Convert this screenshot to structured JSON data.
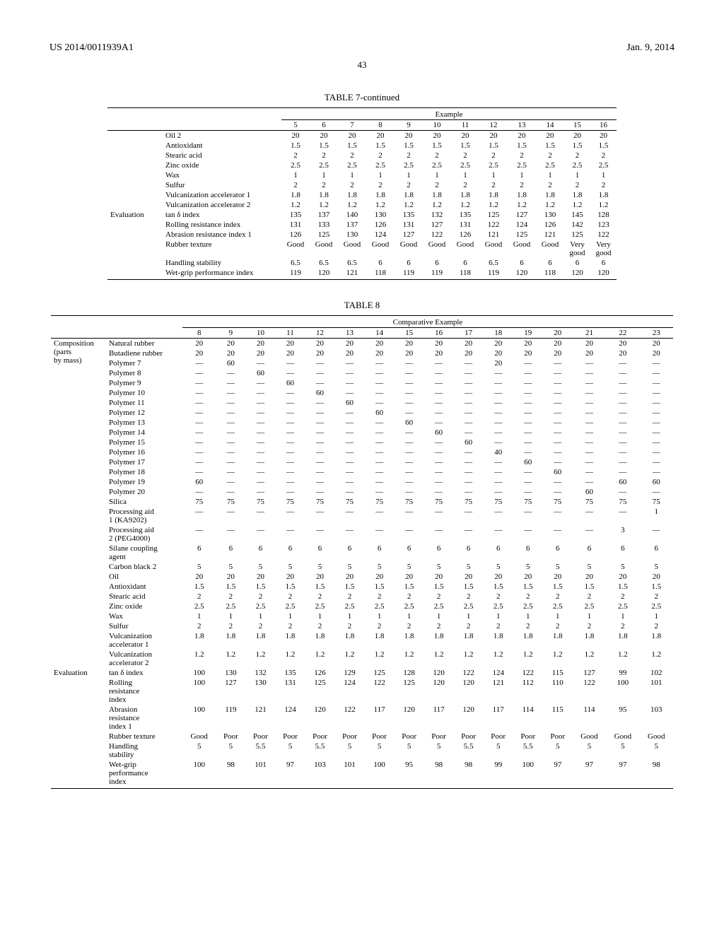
{
  "header": {
    "left": "US 2014/0011939A1",
    "right": "Jan. 9, 2014",
    "page": "43"
  },
  "table7": {
    "title": "TABLE 7-continued",
    "group_header": "Example",
    "col_labels": [
      "5",
      "6",
      "7",
      "8",
      "9",
      "10",
      "11",
      "12",
      "13",
      "14",
      "15",
      "16"
    ],
    "categories": [
      "",
      "Evaluation"
    ],
    "cat_start_row": 8,
    "rows": [
      {
        "label": "Oil 2",
        "v": [
          "20",
          "20",
          "20",
          "20",
          "20",
          "20",
          "20",
          "20",
          "20",
          "20",
          "20",
          "20"
        ]
      },
      {
        "label": "Antioxidant",
        "v": [
          "1.5",
          "1.5",
          "1.5",
          "1.5",
          "1.5",
          "1.5",
          "1.5",
          "1.5",
          "1.5",
          "1.5",
          "1.5",
          "1.5"
        ]
      },
      {
        "label": "Stearic acid",
        "v": [
          "2",
          "2",
          "2",
          "2",
          "2",
          "2",
          "2",
          "2",
          "2",
          "2",
          "2",
          "2"
        ]
      },
      {
        "label": "Zinc oxide",
        "v": [
          "2.5",
          "2.5",
          "2.5",
          "2.5",
          "2.5",
          "2.5",
          "2.5",
          "2.5",
          "2.5",
          "2.5",
          "2.5",
          "2.5"
        ]
      },
      {
        "label": "Wax",
        "v": [
          "1",
          "1",
          "1",
          "1",
          "1",
          "1",
          "1",
          "1",
          "1",
          "1",
          "1",
          "1"
        ]
      },
      {
        "label": "Sulfur",
        "v": [
          "2",
          "2",
          "2",
          "2",
          "2",
          "2",
          "2",
          "2",
          "2",
          "2",
          "2",
          "2"
        ]
      },
      {
        "label": "Vulcanization accelerator 1",
        "v": [
          "1.8",
          "1.8",
          "1.8",
          "1.8",
          "1.8",
          "1.8",
          "1.8",
          "1.8",
          "1.8",
          "1.8",
          "1.8",
          "1.8"
        ]
      },
      {
        "label": "Vulcanization accelerator 2",
        "v": [
          "1.2",
          "1.2",
          "1.2",
          "1.2",
          "1.2",
          "1.2",
          "1.2",
          "1.2",
          "1.2",
          "1.2",
          "1.2",
          "1.2"
        ]
      },
      {
        "label": "tan δ index",
        "v": [
          "135",
          "137",
          "140",
          "130",
          "135",
          "132",
          "135",
          "125",
          "127",
          "130",
          "145",
          "128"
        ]
      },
      {
        "label": "Rolling resistance index",
        "v": [
          "131",
          "133",
          "137",
          "126",
          "131",
          "127",
          "131",
          "122",
          "124",
          "126",
          "142",
          "123"
        ]
      },
      {
        "label": "Abrasion resistance index 1",
        "v": [
          "126",
          "125",
          "130",
          "124",
          "127",
          "122",
          "126",
          "121",
          "125",
          "121",
          "125",
          "122"
        ]
      },
      {
        "label": "Rubber texture",
        "v": [
          "Good",
          "Good",
          "Good",
          "Good",
          "Good",
          "Good",
          "Good",
          "Good",
          "Good",
          "Good",
          "Very good",
          "Very good"
        ]
      },
      {
        "label": "Handling stability",
        "v": [
          "6.5",
          "6.5",
          "6.5",
          "6",
          "6",
          "6",
          "6",
          "6.5",
          "6",
          "6",
          "6",
          "6"
        ]
      },
      {
        "label": "Wet-grip performance index",
        "v": [
          "119",
          "120",
          "121",
          "118",
          "119",
          "119",
          "118",
          "119",
          "120",
          "118",
          "120",
          "120"
        ]
      }
    ]
  },
  "table8": {
    "title": "TABLE 8",
    "group_header": "Comparative Example",
    "col_labels": [
      "8",
      "9",
      "10",
      "11",
      "12",
      "13",
      "14",
      "15",
      "16",
      "17",
      "18",
      "19",
      "20",
      "21",
      "22",
      "23"
    ],
    "cat1": "Composition (parts by mass)",
    "cat2": "Evaluation",
    "cat2_start_row": 29,
    "rows": [
      {
        "label": "Natural rubber",
        "v": [
          "20",
          "20",
          "20",
          "20",
          "20",
          "20",
          "20",
          "20",
          "20",
          "20",
          "20",
          "20",
          "20",
          "20",
          "20",
          "20"
        ]
      },
      {
        "label": "Butadiene rubber",
        "v": [
          "20",
          "20",
          "20",
          "20",
          "20",
          "20",
          "20",
          "20",
          "20",
          "20",
          "20",
          "20",
          "20",
          "20",
          "20",
          "20"
        ]
      },
      {
        "label": "Polymer 7",
        "v": [
          "—",
          "60",
          "—",
          "—",
          "—",
          "—",
          "—",
          "—",
          "—",
          "—",
          "20",
          "—",
          "—",
          "—",
          "—",
          "—"
        ]
      },
      {
        "label": "Polymer 8",
        "v": [
          "—",
          "—",
          "60",
          "—",
          "—",
          "—",
          "—",
          "—",
          "—",
          "—",
          "—",
          "—",
          "—",
          "—",
          "—",
          "—"
        ]
      },
      {
        "label": "Polymer 9",
        "v": [
          "—",
          "—",
          "—",
          "60",
          "—",
          "—",
          "—",
          "—",
          "—",
          "—",
          "—",
          "—",
          "—",
          "—",
          "—",
          "—"
        ]
      },
      {
        "label": "Polymer 10",
        "v": [
          "—",
          "—",
          "—",
          "—",
          "60",
          "—",
          "—",
          "—",
          "—",
          "—",
          "—",
          "—",
          "—",
          "—",
          "—",
          "—"
        ]
      },
      {
        "label": "Polymer 11",
        "v": [
          "—",
          "—",
          "—",
          "—",
          "—",
          "60",
          "—",
          "—",
          "—",
          "—",
          "—",
          "—",
          "—",
          "—",
          "—",
          "—"
        ]
      },
      {
        "label": "Polymer 12",
        "v": [
          "—",
          "—",
          "—",
          "—",
          "—",
          "—",
          "60",
          "—",
          "—",
          "—",
          "—",
          "—",
          "—",
          "—",
          "—",
          "—"
        ]
      },
      {
        "label": "Polymer 13",
        "v": [
          "—",
          "—",
          "—",
          "—",
          "—",
          "—",
          "—",
          "60",
          "—",
          "—",
          "—",
          "—",
          "—",
          "—",
          "—",
          "—"
        ]
      },
      {
        "label": "Polymer 14",
        "v": [
          "—",
          "—",
          "—",
          "—",
          "—",
          "—",
          "—",
          "—",
          "60",
          "—",
          "—",
          "—",
          "—",
          "—",
          "—",
          "—"
        ]
      },
      {
        "label": "Polymer 15",
        "v": [
          "—",
          "—",
          "—",
          "—",
          "—",
          "—",
          "—",
          "—",
          "—",
          "60",
          "—",
          "—",
          "—",
          "—",
          "—",
          "—"
        ]
      },
      {
        "label": "Polymer 16",
        "v": [
          "—",
          "—",
          "—",
          "—",
          "—",
          "—",
          "—",
          "—",
          "—",
          "—",
          "40",
          "—",
          "—",
          "—",
          "—",
          "—"
        ]
      },
      {
        "label": "Polymer 17",
        "v": [
          "—",
          "—",
          "—",
          "—",
          "—",
          "—",
          "—",
          "—",
          "—",
          "—",
          "—",
          "60",
          "—",
          "—",
          "—",
          "—"
        ]
      },
      {
        "label": "Polymer 18",
        "v": [
          "—",
          "—",
          "—",
          "—",
          "—",
          "—",
          "—",
          "—",
          "—",
          "—",
          "—",
          "—",
          "60",
          "—",
          "—",
          "—"
        ]
      },
      {
        "label": "Polymer 19",
        "v": [
          "60",
          "—",
          "—",
          "—",
          "—",
          "—",
          "—",
          "—",
          "—",
          "—",
          "—",
          "—",
          "—",
          "—",
          "60",
          "60"
        ]
      },
      {
        "label": "Polymer 20",
        "v": [
          "—",
          "—",
          "—",
          "—",
          "—",
          "—",
          "—",
          "—",
          "—",
          "—",
          "—",
          "—",
          "—",
          "60",
          "—",
          "—"
        ]
      },
      {
        "label": "Silica",
        "v": [
          "75",
          "75",
          "75",
          "75",
          "75",
          "75",
          "75",
          "75",
          "75",
          "75",
          "75",
          "75",
          "75",
          "75",
          "75",
          "75"
        ]
      },
      {
        "label": "Processing aid 1 (KA9202)",
        "v": [
          "—",
          "—",
          "—",
          "—",
          "—",
          "—",
          "—",
          "—",
          "—",
          "—",
          "—",
          "—",
          "—",
          "—",
          "—",
          "1"
        ]
      },
      {
        "label": "Processing aid 2 (PEG4000)",
        "v": [
          "—",
          "—",
          "—",
          "—",
          "—",
          "—",
          "—",
          "—",
          "—",
          "—",
          "—",
          "—",
          "—",
          "—",
          "3",
          "—"
        ]
      },
      {
        "label": "Silane coupling agent",
        "v": [
          "6",
          "6",
          "6",
          "6",
          "6",
          "6",
          "6",
          "6",
          "6",
          "6",
          "6",
          "6",
          "6",
          "6",
          "6",
          "6"
        ]
      },
      {
        "label": "Carbon black 2",
        "v": [
          "5",
          "5",
          "5",
          "5",
          "5",
          "5",
          "5",
          "5",
          "5",
          "5",
          "5",
          "5",
          "5",
          "5",
          "5",
          "5"
        ]
      },
      {
        "label": "Oil",
        "v": [
          "20",
          "20",
          "20",
          "20",
          "20",
          "20",
          "20",
          "20",
          "20",
          "20",
          "20",
          "20",
          "20",
          "20",
          "20",
          "20"
        ]
      },
      {
        "label": "Antioxidant",
        "v": [
          "1.5",
          "1.5",
          "1.5",
          "1.5",
          "1.5",
          "1.5",
          "1.5",
          "1.5",
          "1.5",
          "1.5",
          "1.5",
          "1.5",
          "1.5",
          "1.5",
          "1.5",
          "1.5"
        ]
      },
      {
        "label": "Stearic acid",
        "v": [
          "2",
          "2",
          "2",
          "2",
          "2",
          "2",
          "2",
          "2",
          "2",
          "2",
          "2",
          "2",
          "2",
          "2",
          "2",
          "2"
        ]
      },
      {
        "label": "Zinc oxide",
        "v": [
          "2.5",
          "2.5",
          "2.5",
          "2.5",
          "2.5",
          "2.5",
          "2.5",
          "2.5",
          "2.5",
          "2.5",
          "2.5",
          "2.5",
          "2.5",
          "2.5",
          "2.5",
          "2.5"
        ]
      },
      {
        "label": "Wax",
        "v": [
          "1",
          "1",
          "1",
          "1",
          "1",
          "1",
          "1",
          "1",
          "1",
          "1",
          "1",
          "1",
          "1",
          "1",
          "1",
          "1"
        ]
      },
      {
        "label": "Sulfur",
        "v": [
          "2",
          "2",
          "2",
          "2",
          "2",
          "2",
          "2",
          "2",
          "2",
          "2",
          "2",
          "2",
          "2",
          "2",
          "2",
          "2"
        ]
      },
      {
        "label": "Vulcanization accelerator 1",
        "v": [
          "1.8",
          "1.8",
          "1.8",
          "1.8",
          "1.8",
          "1.8",
          "1.8",
          "1.8",
          "1.8",
          "1.8",
          "1.8",
          "1.8",
          "1.8",
          "1.8",
          "1.8",
          "1.8"
        ]
      },
      {
        "label": "Vulcanization accelerator 2",
        "v": [
          "1.2",
          "1.2",
          "1.2",
          "1.2",
          "1.2",
          "1.2",
          "1.2",
          "1.2",
          "1.2",
          "1.2",
          "1.2",
          "1.2",
          "1.2",
          "1.2",
          "1.2",
          "1.2"
        ]
      },
      {
        "label": "tan δ index",
        "v": [
          "100",
          "130",
          "132",
          "135",
          "126",
          "129",
          "125",
          "128",
          "120",
          "122",
          "124",
          "122",
          "115",
          "127",
          "99",
          "102"
        ]
      },
      {
        "label": "Rolling resistance index",
        "v": [
          "100",
          "127",
          "130",
          "131",
          "125",
          "124",
          "122",
          "125",
          "120",
          "120",
          "121",
          "112",
          "110",
          "122",
          "100",
          "101"
        ]
      },
      {
        "label": "Abrasion resistance index 1",
        "v": [
          "100",
          "119",
          "121",
          "124",
          "120",
          "122",
          "117",
          "120",
          "117",
          "120",
          "117",
          "114",
          "115",
          "114",
          "95",
          "103"
        ]
      },
      {
        "label": "Rubber texture",
        "v": [
          "Good",
          "Poor",
          "Poor",
          "Poor",
          "Poor",
          "Poor",
          "Poor",
          "Poor",
          "Poor",
          "Poor",
          "Poor",
          "Poor",
          "Poor",
          "Good",
          "Good",
          "Good"
        ]
      },
      {
        "label": "Handling stability",
        "v": [
          "5",
          "5",
          "5.5",
          "5",
          "5.5",
          "5",
          "5",
          "5",
          "5",
          "5.5",
          "5",
          "5.5",
          "5",
          "5",
          "5",
          "5"
        ]
      },
      {
        "label": "Wet-grip performance index",
        "v": [
          "100",
          "98",
          "101",
          "97",
          "103",
          "101",
          "100",
          "95",
          "98",
          "98",
          "99",
          "100",
          "97",
          "97",
          "97",
          "98"
        ]
      }
    ]
  }
}
